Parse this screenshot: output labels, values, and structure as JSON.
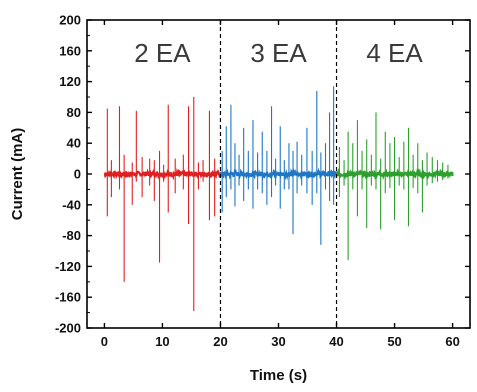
{
  "chart_data": {
    "type": "line",
    "xlabel": "Time (s)",
    "ylabel": "Current (mA)",
    "xlim": [
      -3,
      63
    ],
    "ylim": [
      -200,
      200
    ],
    "x_ticks": [
      0,
      10,
      20,
      30,
      40,
      50,
      60
    ],
    "y_ticks": [
      200,
      160,
      120,
      80,
      40,
      0,
      -40,
      -80,
      -120,
      -160,
      -200
    ],
    "grid": false,
    "dividers": [
      20,
      40
    ],
    "regions": [
      {
        "label": "2 EA",
        "x": 10
      },
      {
        "label": "3 EA",
        "x": 30
      },
      {
        "label": "4 EA",
        "x": 50
      }
    ],
    "series": [
      {
        "color": "#e02020",
        "x_range": [
          0,
          20
        ],
        "baseline_noise": 3,
        "spikes": [
          [
            0.5,
            85,
            -55
          ],
          [
            1.2,
            18,
            -30
          ],
          [
            2.6,
            88,
            -20
          ],
          [
            3.4,
            25,
            -140
          ],
          [
            4.8,
            15,
            -40
          ],
          [
            5.5,
            82,
            -10
          ],
          [
            6.5,
            22,
            -30
          ],
          [
            7.8,
            20,
            -15
          ],
          [
            8.6,
            18,
            -35
          ],
          [
            9.5,
            30,
            -115
          ],
          [
            10.2,
            12,
            -10
          ],
          [
            11.0,
            90,
            -50
          ],
          [
            12.2,
            20,
            -25
          ],
          [
            13.6,
            25,
            -20
          ],
          [
            14.5,
            88,
            -65
          ],
          [
            15.4,
            100,
            -178
          ],
          [
            16.2,
            15,
            -20
          ],
          [
            17.0,
            18,
            -10
          ],
          [
            18.1,
            82,
            -60
          ],
          [
            19.0,
            20,
            -55
          ]
        ]
      },
      {
        "color": "#1f77c4",
        "x_range": [
          20,
          40
        ],
        "baseline_noise": 3,
        "spikes": [
          [
            20.3,
            30,
            -50
          ],
          [
            21.0,
            62,
            -30
          ],
          [
            21.8,
            90,
            -20
          ],
          [
            22.5,
            40,
            -42
          ],
          [
            23.2,
            25,
            -15
          ],
          [
            24.0,
            60,
            -35
          ],
          [
            24.8,
            30,
            -20
          ],
          [
            25.6,
            70,
            -45
          ],
          [
            26.4,
            28,
            -20
          ],
          [
            27.2,
            55,
            -25
          ],
          [
            28.0,
            30,
            -40
          ],
          [
            28.8,
            88,
            -30
          ],
          [
            29.5,
            20,
            -15
          ],
          [
            30.3,
            62,
            -45
          ],
          [
            31.0,
            18,
            -20
          ],
          [
            31.8,
            40,
            -20
          ],
          [
            32.5,
            30,
            -78
          ],
          [
            33.2,
            42,
            -25
          ],
          [
            34.0,
            25,
            -15
          ],
          [
            34.9,
            60,
            -25
          ],
          [
            35.8,
            30,
            -40
          ],
          [
            36.6,
            108,
            -25
          ],
          [
            37.3,
            28,
            -92
          ],
          [
            38.1,
            40,
            -20
          ],
          [
            38.8,
            80,
            -35
          ],
          [
            39.5,
            114,
            -40
          ]
        ]
      },
      {
        "color": "#2ca02c",
        "x_range": [
          40,
          60
        ],
        "baseline_noise": 3,
        "spikes": [
          [
            40.5,
            35,
            -30
          ],
          [
            41.3,
            18,
            -15
          ],
          [
            42.0,
            55,
            -112
          ],
          [
            42.8,
            40,
            -20
          ],
          [
            43.6,
            70,
            -55
          ],
          [
            44.4,
            30,
            -20
          ],
          [
            45.2,
            45,
            -70
          ],
          [
            46.0,
            25,
            -15
          ],
          [
            46.8,
            80,
            -20
          ],
          [
            47.6,
            20,
            -72
          ],
          [
            48.4,
            55,
            -25
          ],
          [
            49.2,
            40,
            -18
          ],
          [
            50.0,
            48,
            -60
          ],
          [
            50.8,
            22,
            -15
          ],
          [
            51.6,
            42,
            -20
          ],
          [
            52.4,
            60,
            -68
          ],
          [
            53.2,
            25,
            -18
          ],
          [
            54.0,
            40,
            -25
          ],
          [
            54.8,
            18,
            -50
          ],
          [
            55.6,
            28,
            -15
          ],
          [
            56.5,
            22,
            -12
          ],
          [
            57.4,
            18,
            -10
          ],
          [
            58.3,
            15,
            -8
          ],
          [
            59.2,
            12,
            -6
          ]
        ]
      }
    ]
  }
}
